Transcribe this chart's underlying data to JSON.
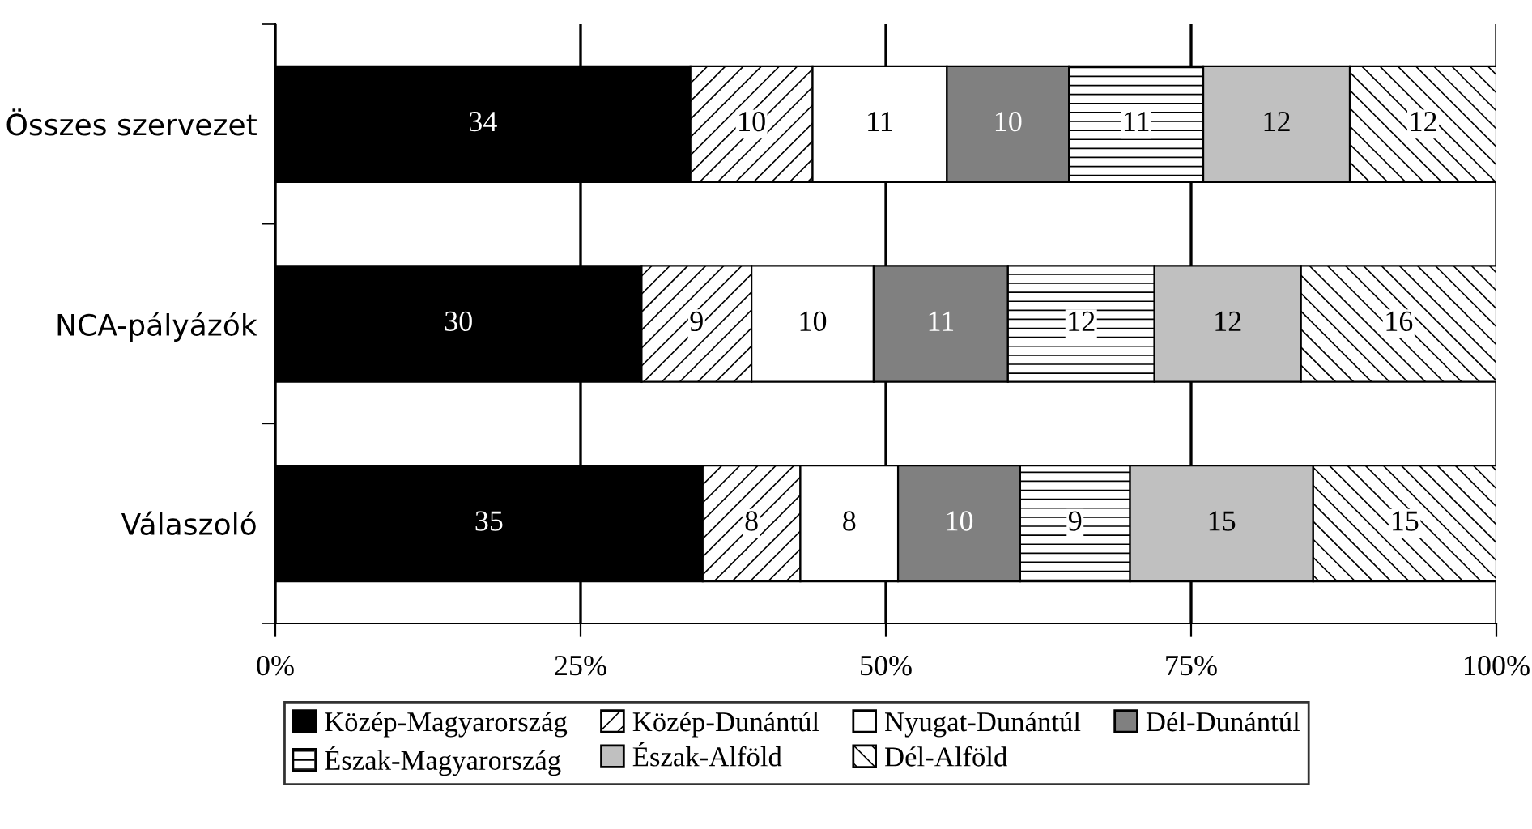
{
  "chart_data": {
    "type": "bar",
    "orientation": "horizontal",
    "stacked": true,
    "data_labels": true,
    "grid": "x",
    "legend": "bottom",
    "categories": [
      "Összes szervezet",
      "NCA-pályázók",
      "Válaszoló"
    ],
    "xlim": [
      0,
      100
    ],
    "xticks": [
      {
        "value": 0,
        "label": "0%"
      },
      {
        "value": 25,
        "label": "25%"
      },
      {
        "value": 50,
        "label": "50%"
      },
      {
        "value": 75,
        "label": "75%"
      },
      {
        "value": 100,
        "label": "100%"
      }
    ],
    "series": [
      {
        "name": "Közép-Magyarország",
        "color": "#000000",
        "values": [
          34,
          30,
          35
        ]
      },
      {
        "name": "Közép-Dunántúl",
        "color": "#ffffff",
        "values": [
          10,
          9,
          8
        ]
      },
      {
        "name": "Nyugat-Dunántúl",
        "color": "#ffffff",
        "values": [
          11,
          10,
          8
        ]
      },
      {
        "name": "Dél-Dunántúl",
        "color": "#808080",
        "values": [
          10,
          11,
          10
        ]
      },
      {
        "name": "Észak-Magyarország",
        "color": "#ffffff",
        "values": [
          11,
          12,
          9
        ]
      },
      {
        "name": "Észak-Alföld",
        "color": "#c0c0c0",
        "values": [
          12,
          12,
          15
        ]
      },
      {
        "name": "Dél-Alföld",
        "color": "#ffffff",
        "values": [
          12,
          16,
          15
        ]
      }
    ]
  }
}
